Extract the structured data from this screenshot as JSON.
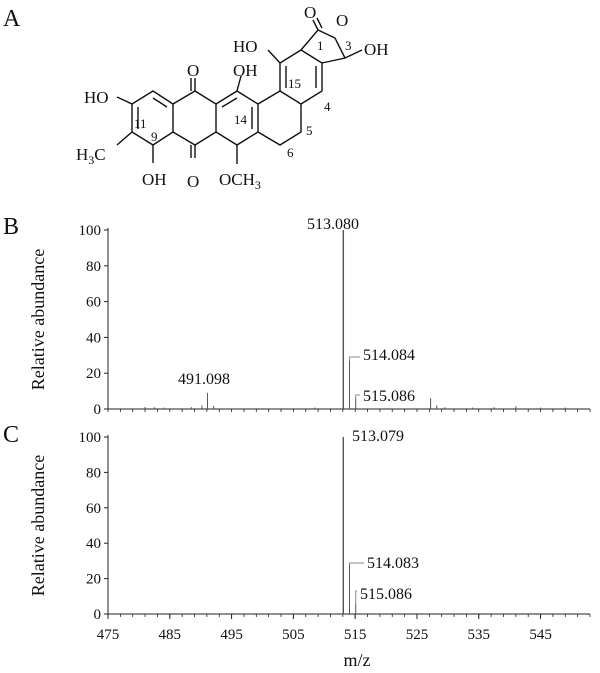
{
  "panels": {
    "a": {
      "letter": "A"
    },
    "b": {
      "letter": "B"
    },
    "c": {
      "letter": "C"
    }
  },
  "structure": {
    "atoms": {
      "carbonyl_o": "O",
      "ring_o": "O",
      "oh_top_right": "OH",
      "ho_top": "HO",
      "o_quinone_top": "O",
      "oh_mid_top": "OH",
      "ho_left": "HO",
      "h3c": "H",
      "h3c_sub": "3",
      "h3c_c": "C",
      "oh_bottom": "OH",
      "o_quinone_bottom": "O",
      "och3": "OCH",
      "och3_sub": "3"
    },
    "ring_numbers": [
      "1",
      "3",
      "15",
      "4",
      "14",
      "11",
      "9",
      "5",
      "6"
    ]
  },
  "chart_data": [
    {
      "type": "bar",
      "panel": "B",
      "ylabel": "Relative abundance",
      "xlabel": "",
      "ylim": [
        0,
        100
      ],
      "xlim": [
        475,
        553
      ],
      "yticks": [
        "0",
        "20",
        "40",
        "60",
        "80",
        "100"
      ],
      "grid": false,
      "peaks": [
        {
          "mz": 481.0,
          "intensity": 1.2
        },
        {
          "mz": 482.5,
          "intensity": 1.0
        },
        {
          "mz": 484.0,
          "intensity": 0.8
        },
        {
          "mz": 488.5,
          "intensity": 1.0
        },
        {
          "mz": 490.2,
          "intensity": 2.0
        },
        {
          "mz": 491.098,
          "intensity": 9,
          "label": "491.098"
        },
        {
          "mz": 492.1,
          "intensity": 1.8
        },
        {
          "mz": 508.5,
          "intensity": 0.8
        },
        {
          "mz": 513.08,
          "intensity": 100,
          "label": "513.080"
        },
        {
          "mz": 514.084,
          "intensity": 27,
          "label": "514.084"
        },
        {
          "mz": 515.086,
          "intensity": 6,
          "label": "515.086"
        },
        {
          "mz": 527.2,
          "intensity": 6
        },
        {
          "mz": 528.2,
          "intensity": 2.0
        },
        {
          "mz": 529.5,
          "intensity": 1.0
        },
        {
          "mz": 534.0,
          "intensity": 0.8
        },
        {
          "mz": 537.5,
          "intensity": 1.0
        },
        {
          "mz": 541.0,
          "intensity": 1.5
        },
        {
          "mz": 545.0,
          "intensity": 0.8
        },
        {
          "mz": 549.0,
          "intensity": 0.8
        }
      ]
    },
    {
      "type": "bar",
      "panel": "C",
      "ylabel": "Relative abundance",
      "xlabel": "m/z",
      "ylim": [
        0,
        100
      ],
      "xlim": [
        475,
        553
      ],
      "yticks": [
        "0",
        "20",
        "40",
        "60",
        "80",
        "100"
      ],
      "xticks": [
        "475",
        "485",
        "495",
        "505",
        "515",
        "525",
        "535",
        "545"
      ],
      "grid": false,
      "peaks": [
        {
          "mz": 513.079,
          "intensity": 100,
          "label": "513.079"
        },
        {
          "mz": 514.083,
          "intensity": 28,
          "label": "514.083"
        },
        {
          "mz": 515.086,
          "intensity": 6,
          "label": "515.086"
        }
      ]
    }
  ]
}
